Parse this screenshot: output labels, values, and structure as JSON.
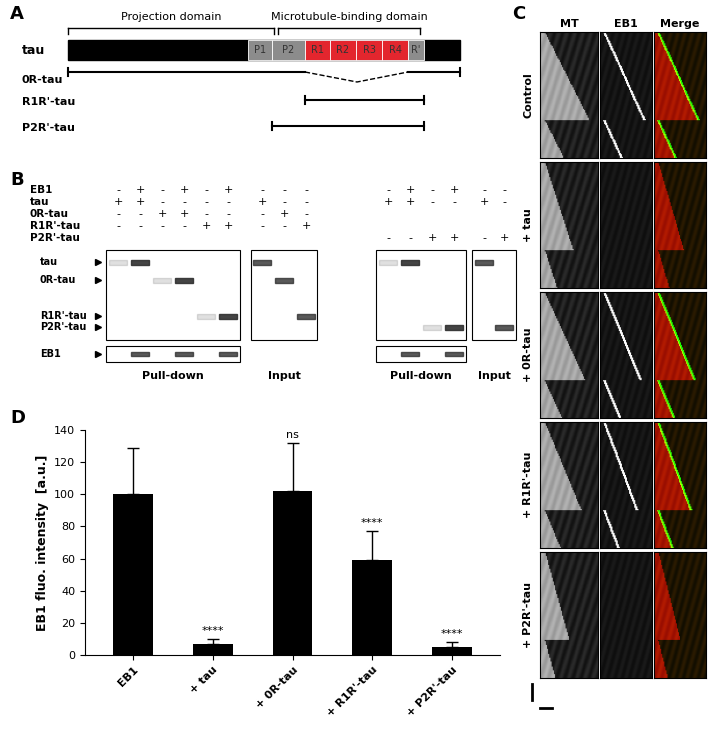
{
  "panel_A": {
    "label": "A",
    "domains": [
      "Projection domain",
      "Microtubule-binding domain"
    ],
    "protein": "tau",
    "segments": [
      "P1",
      "P2",
      "R1",
      "R2",
      "R3",
      "R4",
      "R'"
    ],
    "constructs": [
      "0R-tau",
      "R1R'-tau",
      "P2R'-tau"
    ]
  },
  "panel_B": {
    "label": "B",
    "row_labels": [
      "EB1",
      "tau",
      "0R-tau",
      "R1R'-tau",
      "P2R'-tau"
    ],
    "left_lanes": [
      [
        "-",
        "+",
        "-",
        "+",
        "-",
        "+",
        "-",
        "-",
        "-"
      ],
      [
        "+",
        "+",
        "-",
        "-",
        "-",
        "-",
        "+",
        "-",
        "-"
      ],
      [
        "-",
        "-",
        "+",
        "+",
        "-",
        "-",
        "-",
        "+",
        "-"
      ],
      [
        "-",
        "-",
        "-",
        "-",
        "+",
        "+",
        "-",
        "-",
        "+"
      ],
      [
        null,
        null,
        null,
        null,
        null,
        null,
        null,
        null,
        null
      ]
    ],
    "right_lanes": [
      [
        "-",
        "+",
        "-",
        "+",
        "-",
        "-"
      ],
      [
        "+",
        "+",
        "-",
        "-",
        "+",
        "-"
      ],
      [
        null,
        null,
        null,
        null,
        null,
        null
      ],
      [
        null,
        null,
        null,
        null,
        null,
        null
      ],
      [
        "-",
        "-",
        "+",
        "+",
        "-",
        "+"
      ]
    ],
    "band_labels": [
      "tau",
      "0R-tau",
      "R1R'-tau",
      "P2R'-tau"
    ],
    "loading_label": "EB1",
    "blot_titles": [
      "Pull-down",
      "Input"
    ]
  },
  "panel_C": {
    "label": "C",
    "columns": [
      "MT",
      "EB1",
      "Merge"
    ],
    "rows": [
      "Control",
      "+ tau",
      "+ 0R-tau",
      "+ R1R'-tau",
      "+ P2R'-tau"
    ]
  },
  "chart_data": {
    "type": "bar",
    "panel_label": "D",
    "categories": [
      "EB1",
      "+ tau",
      "+ 0R-tau",
      "+ R1R'-tau",
      "+ P2R'-tau"
    ],
    "values": [
      100,
      7,
      102,
      59,
      5
    ],
    "errors": [
      29,
      3,
      30,
      18,
      3
    ],
    "significance": [
      null,
      "****",
      "ns",
      "****",
      "****"
    ],
    "y_label": "EB1 fluo. intensity  [a.u.]",
    "color": "#000000",
    "ylim": [
      0,
      140
    ],
    "yticks": [
      0,
      20,
      40,
      60,
      80,
      100,
      120,
      140
    ],
    "grid": false
  }
}
